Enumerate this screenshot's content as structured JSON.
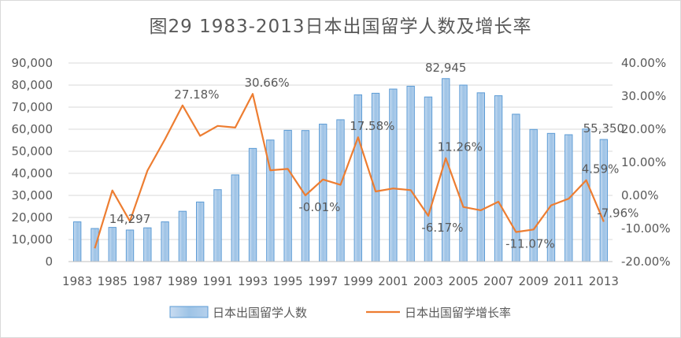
{
  "chart_data": {
    "type": "bar",
    "title": "图29  1983-2013日本出国留学人数及增长率",
    "categories": [
      "1983",
      "1984",
      "1985",
      "1986",
      "1987",
      "1988",
      "1989",
      "1990",
      "1991",
      "1992",
      "1993",
      "1994",
      "1995",
      "1996",
      "1997",
      "1998",
      "1999",
      "2000",
      "2001",
      "2002",
      "2003",
      "2004",
      "2005",
      "2006",
      "2007",
      "2008",
      "2009",
      "2010",
      "2011",
      "2012",
      "2013"
    ],
    "x_tick_labels": [
      "1983",
      "1985",
      "1987",
      "1989",
      "1991",
      "1993",
      "1995",
      "1997",
      "1999",
      "2001",
      "2003",
      "2005",
      "2007",
      "2009",
      "2011",
      "2013"
    ],
    "series": [
      {
        "name": "日本出国留学人数",
        "type": "bar",
        "axis": "left",
        "color": "#9dc3e6",
        "values": [
          18000,
          15000,
          15500,
          14297,
          15300,
          18000,
          22800,
          27000,
          32600,
          39300,
          51300,
          55100,
          59500,
          59400,
          62300,
          64300,
          75600,
          76300,
          78200,
          79500,
          74600,
          82945,
          80000,
          76500,
          75200,
          66800,
          59900,
          58100,
          57500,
          60100,
          55350
        ]
      },
      {
        "name": "日本出国留学增长率",
        "type": "line",
        "axis": "right",
        "color": "#ed7d31",
        "values": [
          null,
          -16.0,
          1.5,
          -7.8,
          7.5,
          17.0,
          27.18,
          18.0,
          21.0,
          20.5,
          30.66,
          7.6,
          8.0,
          -0.01,
          4.8,
          3.2,
          17.58,
          1.2,
          2.1,
          1.6,
          -6.17,
          11.26,
          -3.5,
          -4.5,
          -1.9,
          -11.07,
          -10.3,
          -3.0,
          -1.0,
          4.59,
          -7.96
        ]
      }
    ],
    "data_labels": [
      {
        "series": 0,
        "index": 3,
        "text": "14,297"
      },
      {
        "series": 0,
        "index": 21,
        "text": "82,945"
      },
      {
        "series": 0,
        "index": 30,
        "text": "55,350"
      },
      {
        "series": 1,
        "index": 6,
        "text": "27.18%"
      },
      {
        "series": 1,
        "index": 10,
        "text": "30.66%"
      },
      {
        "series": 1,
        "index": 13,
        "text": "-0.01%"
      },
      {
        "series": 1,
        "index": 16,
        "text": "17.58%"
      },
      {
        "series": 1,
        "index": 20,
        "text": "-6.17%"
      },
      {
        "series": 1,
        "index": 21,
        "text": "11.26%"
      },
      {
        "series": 1,
        "index": 25,
        "text": "-11.07%"
      },
      {
        "series": 1,
        "index": 29,
        "text": "4.59%"
      },
      {
        "series": 1,
        "index": 30,
        "text": "-7.96%"
      }
    ],
    "ylim_left": [
      0,
      90000
    ],
    "yticks_left": [
      "0",
      "10,000",
      "20,000",
      "30,000",
      "40,000",
      "50,000",
      "60,000",
      "70,000",
      "80,000",
      "90,000"
    ],
    "ylim_right": [
      -20,
      40
    ],
    "yticks_right": [
      "-20.00%",
      "-10.00%",
      "0.00%",
      "10.00%",
      "20.00%",
      "30.00%",
      "40.00%"
    ],
    "grid": true,
    "legend_position": "bottom",
    "xlabel": "",
    "ylabel": ""
  }
}
